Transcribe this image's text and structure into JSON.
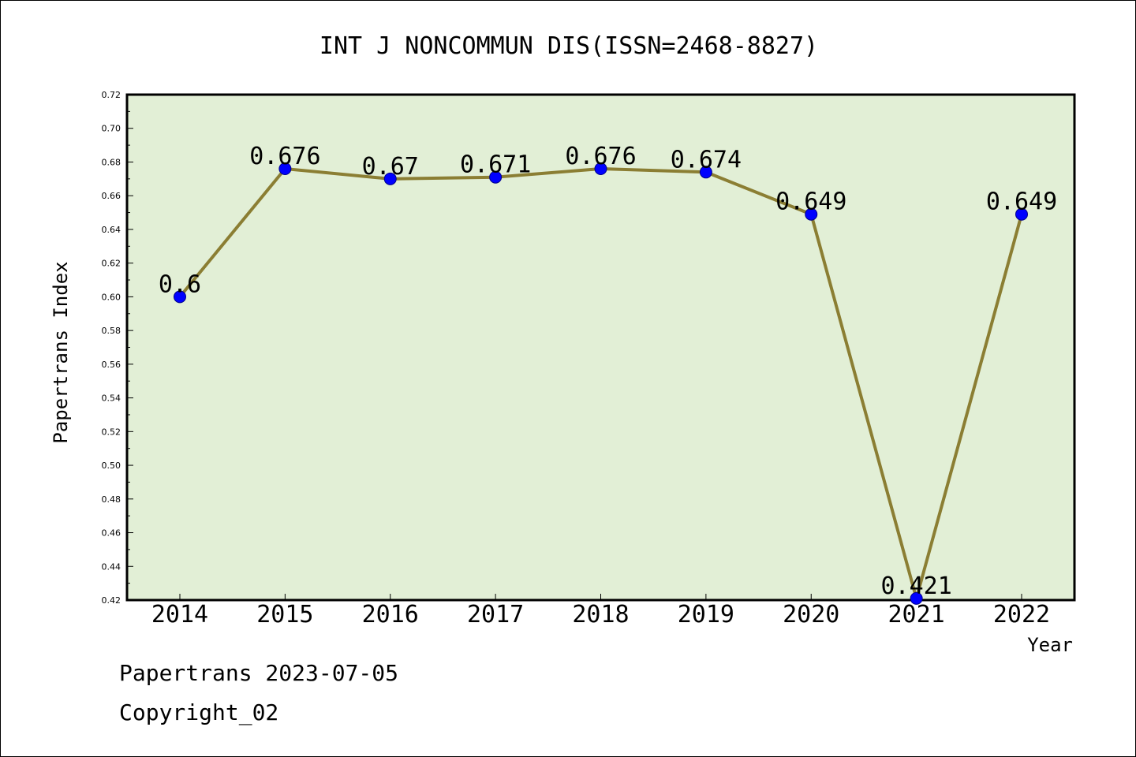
{
  "colors": {
    "background": "#ffffff",
    "plot_background": "#e2efd6",
    "line": "#8b7e33",
    "marker": "#0000ff",
    "marker_edge": "#00008b",
    "text": "#000000"
  },
  "footer": {
    "date_line": "Papertrans 2023-07-05",
    "copyright_line": "Copyright_02"
  },
  "chart_data": {
    "type": "line",
    "title": "INT J NONCOMMUN DIS(ISSN=2468-8827)",
    "xlabel": "Year",
    "ylabel": "Papertrans Index",
    "categories": [
      "2014",
      "2015",
      "2016",
      "2017",
      "2018",
      "2019",
      "2020",
      "2021",
      "2022"
    ],
    "series": [
      {
        "values": [
          0.6,
          0.676,
          0.67,
          0.671,
          0.676,
          0.674,
          0.649,
          0.421,
          0.649
        ],
        "labels": [
          "0.6",
          "0.676",
          "0.67",
          "0.671",
          "0.676",
          "0.674",
          "0.649",
          "0.421",
          "0.649"
        ]
      }
    ],
    "ylim": [
      0.42,
      0.72
    ],
    "yticks": [
      "0.42",
      "0.44",
      "0.46",
      "0.48",
      "0.50",
      "0.52",
      "0.54",
      "0.56",
      "0.58",
      "0.60",
      "0.62",
      "0.64",
      "0.66",
      "0.68",
      "0.70",
      "0.72"
    ],
    "grid": false,
    "legend": "none"
  }
}
